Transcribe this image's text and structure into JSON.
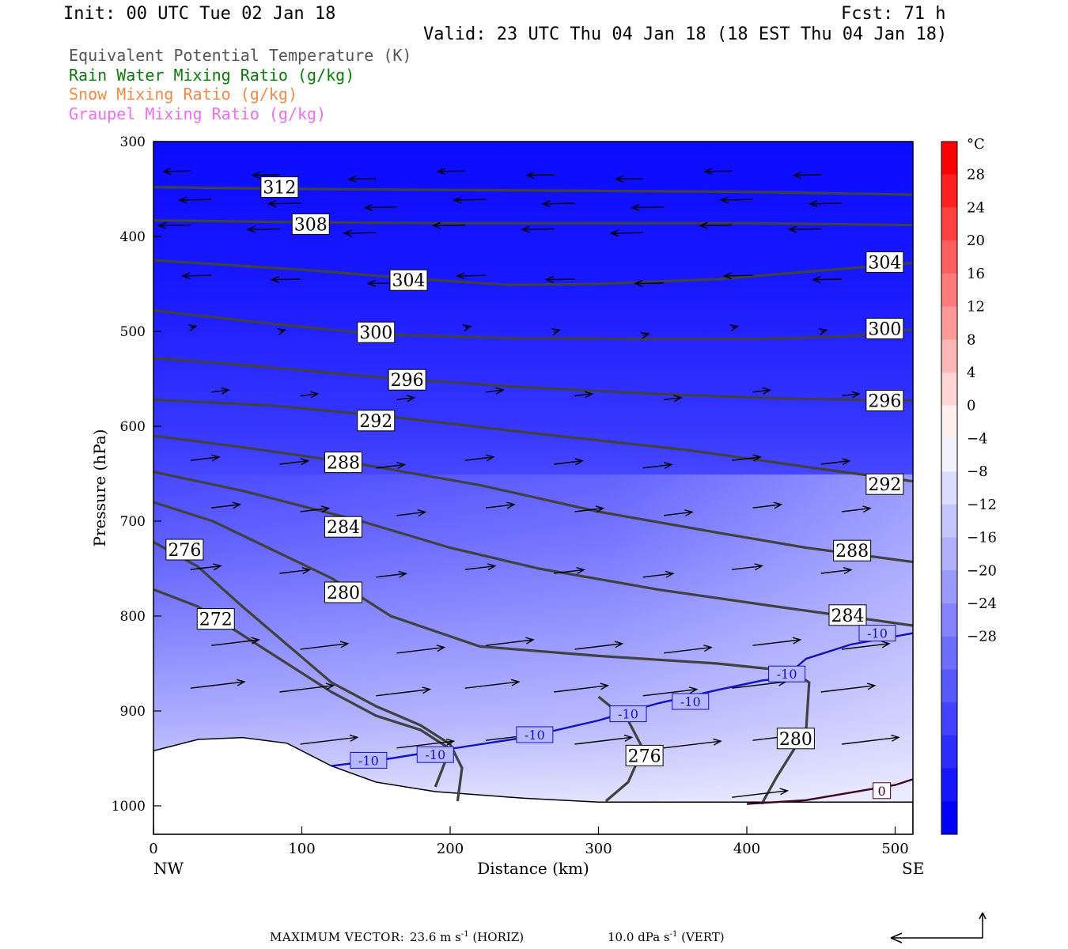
{
  "header": {
    "init": "Init: 00 UTC Tue 02 Jan 18",
    "fcst": "Fcst:   71 h",
    "valid": "Valid: 23 UTC Thu 04 Jan 18 (18 EST Thu 04 Jan 18)"
  },
  "legend": [
    {
      "label": "Equivalent Potential Temperature (K)",
      "color": "#555555"
    },
    {
      "label": "Rain Water Mixing Ratio (g/kg)",
      "color": "#0a7a0a"
    },
    {
      "label": "Snow Mixing Ratio (g/kg)",
      "color": "#f08a4b"
    },
    {
      "label": "Graupel Mixing Ratio (g/kg)",
      "color": "#ee6eee"
    }
  ],
  "footer": {
    "max_vector_label": "MAXIMUM VECTOR:",
    "horiz": "23.6 m s",
    "horiz_suffix": " (HORIZ)",
    "vert": "10.0 dPa s",
    "vert_suffix": " (VERT)",
    "exponent": "-1"
  },
  "chart_data": {
    "type": "cross-section",
    "xlabel": "Distance (km)",
    "ylabel": "Pressure (hPa)",
    "xlim": [
      0,
      512
    ],
    "ylim": [
      1030,
      300
    ],
    "x_ticks": [
      0,
      100,
      200,
      300,
      400,
      500
    ],
    "y_ticks": [
      300,
      400,
      500,
      600,
      700,
      800,
      900,
      1000
    ],
    "left_end_label": "NW",
    "right_end_label": "SE",
    "colorbar": {
      "unit": "°C",
      "labels": [
        28,
        24,
        20,
        16,
        12,
        8,
        4,
        0,
        -4,
        -8,
        -12,
        -16,
        -20,
        -24,
        -28
      ],
      "colors": [
        "#ff0000",
        "#ff2020",
        "#ff4040",
        "#ff5e5e",
        "#ff7a7a",
        "#ff9898",
        "#ffb6b6",
        "#ffd4d4",
        "#fff0f0",
        "#f3f3ff",
        "#dcdcff",
        "#c6c6ff",
        "#b0b0ff",
        "#9a9aff",
        "#8484ff",
        "#6e6eff",
        "#5858ff",
        "#4242ff",
        "#2c2cff",
        "#1616ff",
        "#0000ff"
      ]
    },
    "temperature_contours": [
      {
        "label": "-10",
        "points": [
          [
            120,
            958
          ],
          [
            160,
            950
          ],
          [
            200,
            940
          ],
          [
            250,
            928
          ],
          [
            300,
            910
          ],
          [
            340,
            892
          ],
          [
            380,
            878
          ],
          [
            410,
            868
          ],
          [
            425,
            865
          ],
          [
            440,
            845
          ],
          [
            470,
            830
          ],
          [
            512,
            818
          ]
        ],
        "label_at": [
          [
            145,
            952
          ],
          [
            190,
            946
          ],
          [
            257,
            925
          ],
          [
            320,
            903
          ],
          [
            362,
            890
          ],
          [
            427,
            861
          ],
          [
            488,
            818
          ]
        ]
      },
      {
        "label": "0",
        "points": [
          [
            400,
            998
          ],
          [
            440,
            994
          ],
          [
            470,
            986
          ],
          [
            500,
            978
          ],
          [
            512,
            972
          ]
        ],
        "label_at": [
          [
            491,
            984
          ]
        ]
      }
    ],
    "theta_e_contours": [
      {
        "label": "312",
        "points": [
          [
            0,
            348
          ],
          [
            100,
            350
          ],
          [
            200,
            351
          ],
          [
            300,
            352
          ],
          [
            400,
            353
          ],
          [
            512,
            356
          ]
        ],
        "label_at": [
          [
            85,
            348
          ]
        ]
      },
      {
        "label": "308",
        "points": [
          [
            0,
            383
          ],
          [
            100,
            385
          ],
          [
            200,
            386
          ],
          [
            300,
            386
          ],
          [
            400,
            386
          ],
          [
            512,
            388
          ]
        ],
        "label_at": [
          [
            106,
            387
          ]
        ]
      },
      {
        "label": "304",
        "points": [
          [
            0,
            425
          ],
          [
            100,
            435
          ],
          [
            180,
            445
          ],
          [
            240,
            451
          ],
          [
            300,
            450
          ],
          [
            380,
            445
          ],
          [
            450,
            436
          ],
          [
            512,
            428
          ]
        ],
        "label_at": [
          [
            172,
            446
          ],
          [
            493,
            427
          ]
        ]
      },
      {
        "label": "300",
        "points": [
          [
            0,
            478
          ],
          [
            80,
            492
          ],
          [
            150,
            503
          ],
          [
            240,
            507
          ],
          [
            320,
            508
          ],
          [
            410,
            508
          ],
          [
            470,
            505
          ],
          [
            512,
            498
          ]
        ],
        "label_at": [
          [
            150,
            501
          ],
          [
            493,
            497
          ]
        ]
      },
      {
        "label": "296",
        "points": [
          [
            0,
            528
          ],
          [
            80,
            538
          ],
          [
            150,
            548
          ],
          [
            240,
            558
          ],
          [
            340,
            566
          ],
          [
            430,
            571
          ],
          [
            512,
            573
          ]
        ],
        "label_at": [
          [
            171,
            551
          ],
          [
            493,
            573
          ]
        ]
      },
      {
        "label": "292",
        "points": [
          [
            0,
            572
          ],
          [
            80,
            578
          ],
          [
            160,
            590
          ],
          [
            260,
            608
          ],
          [
            360,
            625
          ],
          [
            450,
            645
          ],
          [
            512,
            658
          ]
        ],
        "label_at": [
          [
            150,
            594
          ],
          [
            493,
            661
          ]
        ]
      },
      {
        "label": "288",
        "points": [
          [
            0,
            610
          ],
          [
            60,
            622
          ],
          [
            140,
            640
          ],
          [
            220,
            662
          ],
          [
            300,
            690
          ],
          [
            380,
            712
          ],
          [
            440,
            728
          ],
          [
            512,
            743
          ]
        ],
        "label_at": [
          [
            128,
            638
          ],
          [
            471,
            731
          ]
        ]
      },
      {
        "label": "284",
        "points": [
          [
            0,
            648
          ],
          [
            60,
            668
          ],
          [
            140,
            700
          ],
          [
            200,
            728
          ],
          [
            260,
            750
          ],
          [
            340,
            772
          ],
          [
            420,
            790
          ],
          [
            512,
            810
          ]
        ],
        "label_at": [
          [
            128,
            706
          ],
          [
            468,
            799
          ]
        ]
      },
      {
        "label": "280",
        "points": [
          [
            0,
            680
          ],
          [
            40,
            700
          ],
          [
            80,
            730
          ],
          [
            120,
            760
          ],
          [
            160,
            800
          ],
          [
            220,
            832
          ],
          [
            300,
            842
          ],
          [
            380,
            850
          ],
          [
            430,
            858
          ],
          [
            442,
            870
          ],
          [
            440,
            920
          ],
          [
            420,
            970
          ],
          [
            410,
            998
          ]
        ],
        "label_at": [
          [
            128,
            775
          ],
          [
            433,
            929
          ]
        ]
      },
      {
        "label": "276",
        "points": [
          [
            0,
            722
          ],
          [
            30,
            748
          ],
          [
            60,
            790
          ],
          [
            90,
            830
          ],
          [
            120,
            870
          ],
          [
            150,
            895
          ],
          [
            180,
            915
          ],
          [
            200,
            935
          ],
          [
            208,
            960
          ],
          [
            205,
            995
          ]
        ],
        "label_at": [
          [
            21,
            730
          ],
          [
            331,
            947
          ]
        ]
      },
      {
        "label": "272",
        "points": [
          [
            0,
            772
          ],
          [
            30,
            790
          ],
          [
            60,
            820
          ],
          [
            90,
            850
          ],
          [
            120,
            880
          ],
          [
            150,
            905
          ],
          [
            180,
            920
          ],
          [
            200,
            940
          ],
          [
            190,
            980
          ]
        ],
        "label_at": [
          [
            42,
            803
          ]
        ]
      },
      {
        "label": "",
        "points": [
          [
            300,
            885
          ],
          [
            320,
            910
          ],
          [
            330,
            940
          ],
          [
            320,
            975
          ],
          [
            305,
            995
          ]
        ],
        "label_at": []
      }
    ],
    "terrain": [
      [
        0,
        942
      ],
      [
        30,
        930
      ],
      [
        60,
        928
      ],
      [
        90,
        934
      ],
      [
        120,
        958
      ],
      [
        150,
        975
      ],
      [
        190,
        985
      ],
      [
        250,
        992
      ],
      [
        300,
        996
      ],
      [
        400,
        996
      ],
      [
        512,
        996
      ]
    ],
    "max_vector": {
      "horiz": 23.6,
      "horiz_unit": "m s-1",
      "vert": 10.0,
      "vert_unit": "dPa s-1"
    }
  }
}
